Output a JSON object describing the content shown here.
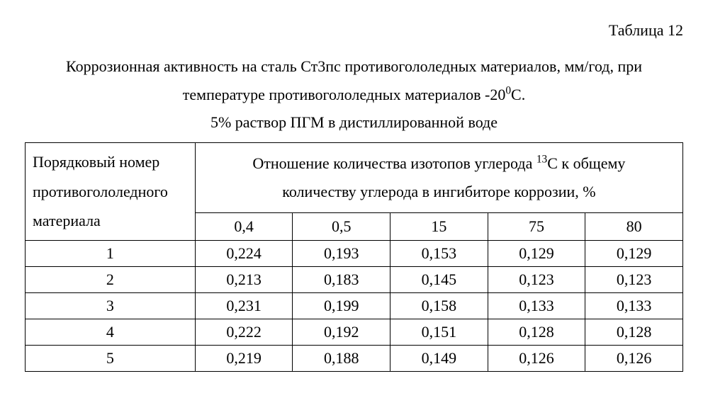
{
  "label": "Таблица 12",
  "title": {
    "line1_pre": "Коррозионная активность на сталь Ст3пс противогололедных материалов, мм/год, при",
    "line2_pre": "температуре противогололедных материалов -20",
    "line2_sup": "0",
    "line2_post": "С.",
    "line3": "5% раствор ПГМ в дистиллированной воде"
  },
  "table": {
    "row_header_l1": "Порядковый номер",
    "row_header_l2": "противогололедного",
    "row_header_l3": "материала",
    "group_header_pre": "Отношение количества изотопов углерода ",
    "group_header_sup": "13",
    "group_header_mid": "С к общему",
    "group_header_l2": "количеству углерода в ингибиторе коррозии, %",
    "cols": [
      "0,4",
      "0,5",
      "15",
      "75",
      "80"
    ],
    "rows": [
      {
        "n": "1",
        "v": [
          "0,224",
          "0,193",
          "0,153",
          "0,129",
          "0,129"
        ]
      },
      {
        "n": "2",
        "v": [
          "0,213",
          "0,183",
          "0,145",
          "0,123",
          "0,123"
        ]
      },
      {
        "n": "3",
        "v": [
          "0,231",
          "0,199",
          "0,158",
          "0,133",
          "0,133"
        ]
      },
      {
        "n": "4",
        "v": [
          "0,222",
          "0,192",
          "0,151",
          "0,128",
          "0,128"
        ]
      },
      {
        "n": "5",
        "v": [
          "0,219",
          "0,188",
          "0,149",
          "0,126",
          "0,126"
        ]
      }
    ]
  },
  "colors": {
    "text": "#000000",
    "background": "#ffffff",
    "border": "#000000"
  },
  "fontsize": {
    "body": 22
  }
}
